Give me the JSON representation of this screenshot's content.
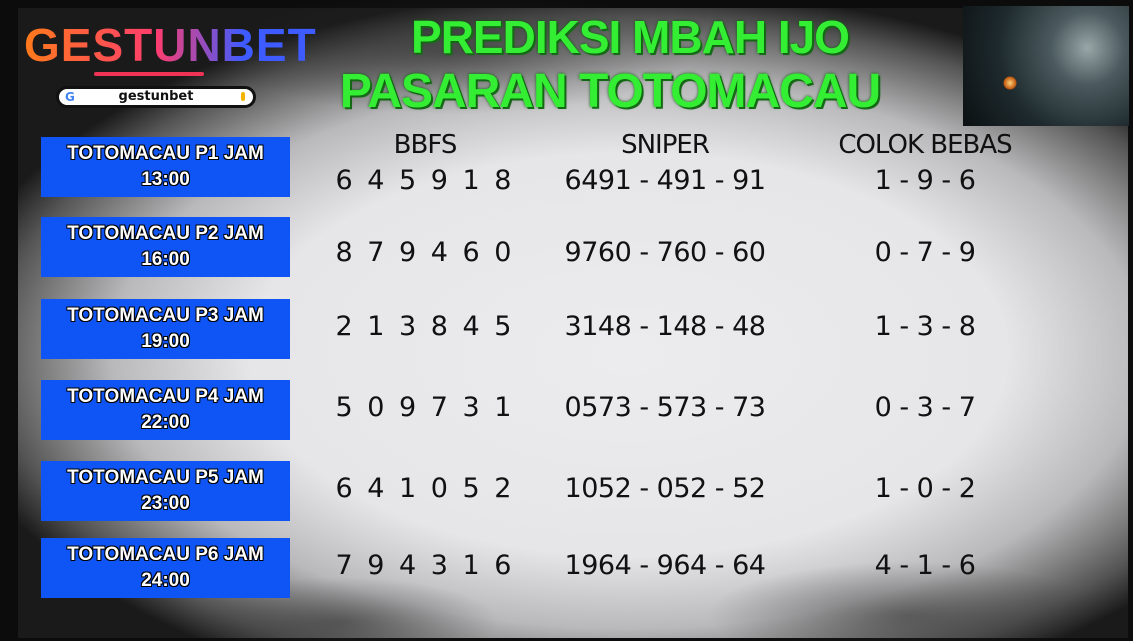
{
  "brand": {
    "logo_text": "GESTUNBET",
    "search_query": "gestunbet",
    "search_icon": "google-g-icon",
    "mic_icon": "mic-icon"
  },
  "title": {
    "line1": "PREDIKSI MBAH IJO",
    "line2": "PASARAN TOTOMACAU"
  },
  "colors": {
    "title_green": "#33ee33",
    "label_blue": "#0f55f5"
  },
  "columns": {
    "bbfs": "BBFS",
    "sniper": "SNIPER",
    "colok": "COLOK BEBAS"
  },
  "rows": [
    {
      "market": "TOTOMACAU P1 JAM",
      "time": "13:00",
      "bbfs": "6 4 5 9 1 8",
      "sniper": "6491 - 491 - 91",
      "colok": "1 - 9 - 6"
    },
    {
      "market": "TOTOMACAU P2 JAM",
      "time": "16:00",
      "bbfs": "8 7 9 4 6 0",
      "sniper": "9760 - 760 - 60",
      "colok": "0 - 7 - 9"
    },
    {
      "market": "TOTOMACAU P3 JAM",
      "time": "19:00",
      "bbfs": "2 1 3 8 4 5",
      "sniper": "3148 - 148 - 48",
      "colok": "1 - 3 - 8"
    },
    {
      "market": "TOTOMACAU P4 JAM",
      "time": "22:00",
      "bbfs": "5 0 9 7 3 1",
      "sniper": "0573 - 573 - 73",
      "colok": "0 - 3 - 7"
    },
    {
      "market": "TOTOMACAU P5 JAM",
      "time": "23:00",
      "bbfs": "6 4 1 0 5 2",
      "sniper": "1052 - 052 - 52",
      "colok": "1 - 0 - 2"
    },
    {
      "market": "TOTOMACAU P6 JAM",
      "time": "24:00",
      "bbfs": "7 9 4 3 1 6",
      "sniper": "1964 - 964 - 64",
      "colok": "4 - 1 - 6"
    }
  ]
}
